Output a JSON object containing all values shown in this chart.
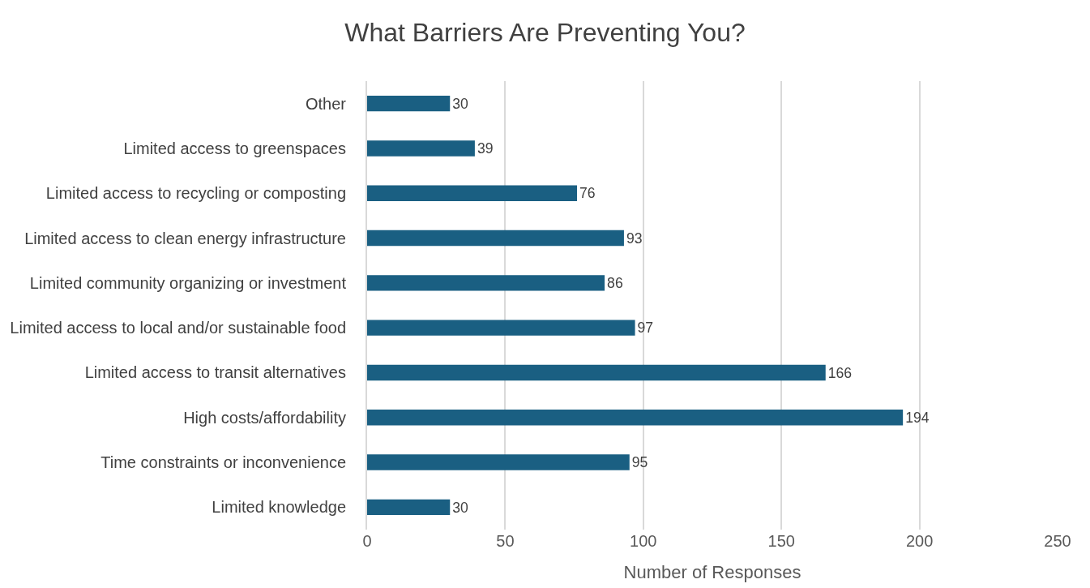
{
  "chart_data": {
    "type": "bar",
    "orientation": "horizontal",
    "title": "What Barriers Are Preventing You?",
    "xlabel": "Number of Responses",
    "categories": [
      "Other",
      "Limited access to greenspaces",
      "Limited access to recycling or composting",
      "Limited access to clean energy infrastructure",
      "Limited community organizing or investment",
      "Limited access to local and/or sustainable food",
      "Limited access to transit alternatives",
      "High costs/affordability",
      "Time constraints or inconvenience",
      "Limited knowledge"
    ],
    "values": [
      30,
      39,
      76,
      93,
      86,
      97,
      166,
      194,
      95,
      30
    ],
    "color": "#1a5f82",
    "xlim": [
      0,
      250
    ],
    "xticks": [
      0,
      50,
      100,
      150,
      200,
      250
    ],
    "grid": "x",
    "data_labels": true,
    "legend": false
  }
}
